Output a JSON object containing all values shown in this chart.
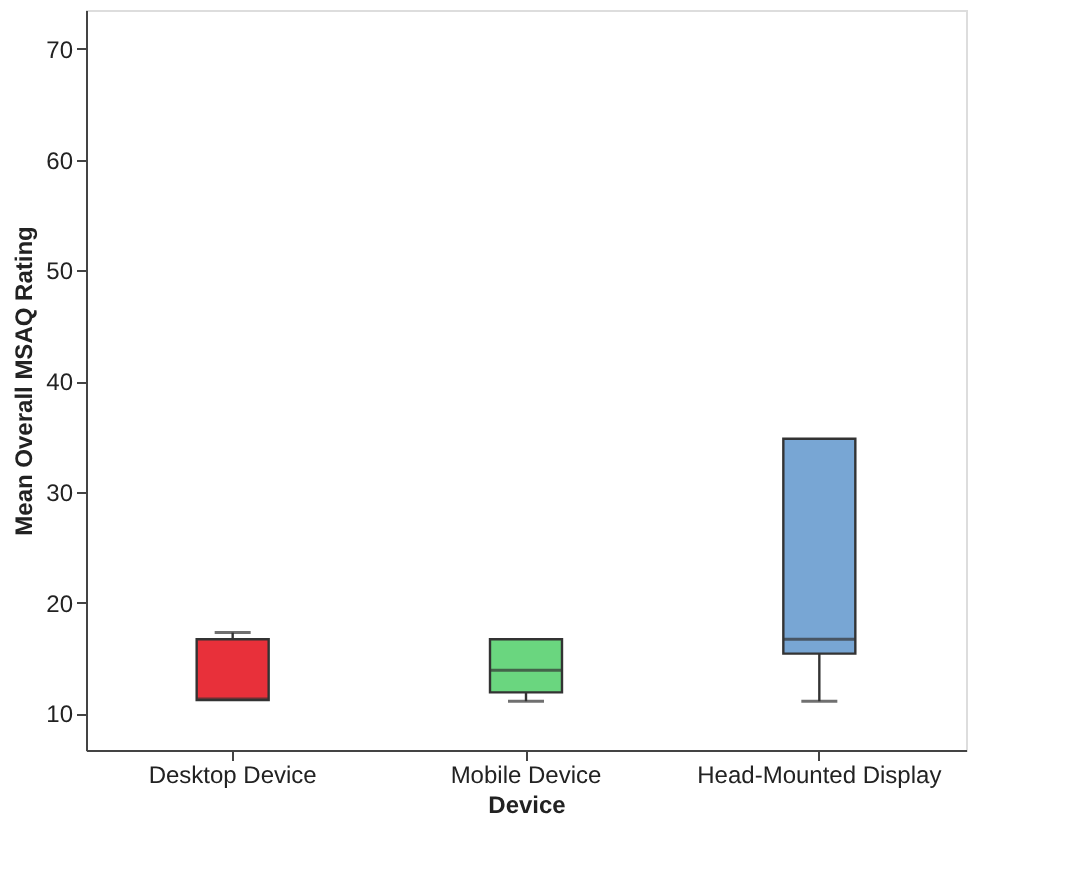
{
  "chart_data": {
    "type": "box",
    "xlabel": "Device",
    "ylabel": "Mean Overall MSAQ Rating",
    "categories": [
      "Desktop Device",
      "Mobile Device",
      "Head-Mounted Display"
    ],
    "colors": [
      "#e8303a",
      "#6ad67f",
      "#78a6d4"
    ],
    "boxes": [
      {
        "low": 11.2,
        "q1": 11.2,
        "median": 11.3,
        "q3": 16.7,
        "high": 17.3
      },
      {
        "low": 11.1,
        "q1": 11.9,
        "median": 13.9,
        "q3": 16.7,
        "high": 16.7
      },
      {
        "low": 11.1,
        "q1": 15.4,
        "median": 16.7,
        "q3": 34.8,
        "high": 34.8
      }
    ],
    "ylim": [
      6.7,
      73.5
    ],
    "yticks": [
      10,
      20,
      30,
      40,
      50,
      60,
      70
    ],
    "grid": false
  }
}
